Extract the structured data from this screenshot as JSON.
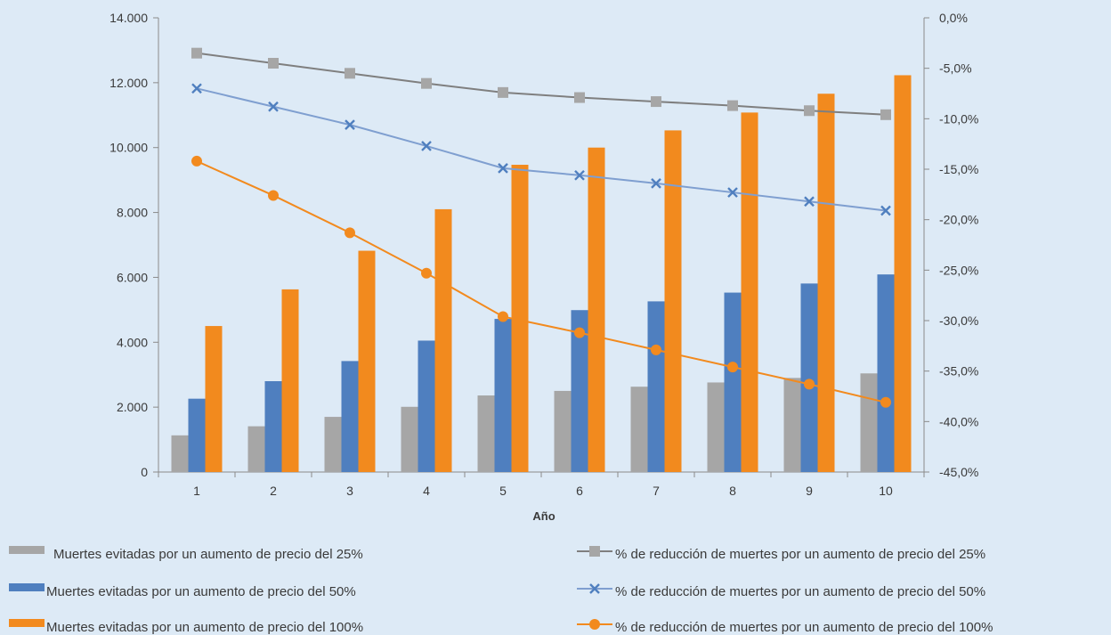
{
  "chart_data": {
    "type": "bar",
    "title": "",
    "xlabel": "Año",
    "ylabel": "",
    "ylabel_right": "",
    "categories": [
      "1",
      "2",
      "3",
      "4",
      "5",
      "6",
      "7",
      "8",
      "9",
      "10"
    ],
    "ylim": [
      0,
      14000
    ],
    "y_ticks": [
      "0",
      "2.000",
      "4.000",
      "6.000",
      "8.000",
      "10.000",
      "12.000",
      "14.000"
    ],
    "y2lim": [
      -45,
      0
    ],
    "y2_ticks": [
      "-45,0%",
      "-40,0%",
      "-35,0%",
      "-30,0%",
      "-25,0%",
      "-20,0%",
      "-15,0%",
      "-10,0%",
      "-5,0%",
      "0,0%"
    ],
    "grid": false,
    "legend_position": "bottom",
    "series": [
      {
        "name": "Muertes evitadas por un aumento de precio del 25%",
        "type": "bar",
        "axis": "left",
        "color": "#a6a6a6",
        "values": [
          1130,
          1410,
          1700,
          2010,
          2360,
          2500,
          2630,
          2760,
          2900,
          3040
        ]
      },
      {
        "name": "Muertes evitadas por un aumento de precio del 50%",
        "type": "bar",
        "axis": "left",
        "color": "#4f7fbf",
        "values": [
          2260,
          2800,
          3420,
          4050,
          4720,
          4990,
          5260,
          5530,
          5810,
          6090
        ]
      },
      {
        "name": "Muertes evitadas por un aumento de precio del 100%",
        "type": "bar",
        "axis": "left",
        "color": "#f28a1e",
        "values": [
          4500,
          5630,
          6820,
          8100,
          9470,
          10000,
          10530,
          11080,
          11660,
          12230
        ]
      },
      {
        "name": "% de reducción de muertes por un aumento de precio del 25%",
        "type": "line",
        "axis": "right",
        "color": "#7f7f7f",
        "marker": "square",
        "marker_color": "#a6a6a6",
        "values": [
          -3.5,
          -4.5,
          -5.5,
          -6.5,
          -7.4,
          -7.9,
          -8.3,
          -8.7,
          -9.2,
          -9.6
        ]
      },
      {
        "name": "% de reducción de muertes por un aumento de precio del 50%",
        "type": "line",
        "axis": "right",
        "color": "#7f9fd0",
        "marker": "x",
        "marker_color": "#4f7fbf",
        "values": [
          -7.0,
          -8.8,
          -10.6,
          -12.7,
          -14.9,
          -15.6,
          -16.4,
          -17.3,
          -18.2,
          -19.1
        ]
      },
      {
        "name": "% de reducción de muertes por un aumento de precio del 100%",
        "type": "line",
        "axis": "right",
        "color": "#f28a1e",
        "marker": "circle",
        "marker_color": "#f28a1e",
        "values": [
          -14.2,
          -17.6,
          -21.3,
          -25.3,
          -29.6,
          -31.2,
          -32.9,
          -34.6,
          -36.3,
          -38.1
        ]
      }
    ]
  }
}
